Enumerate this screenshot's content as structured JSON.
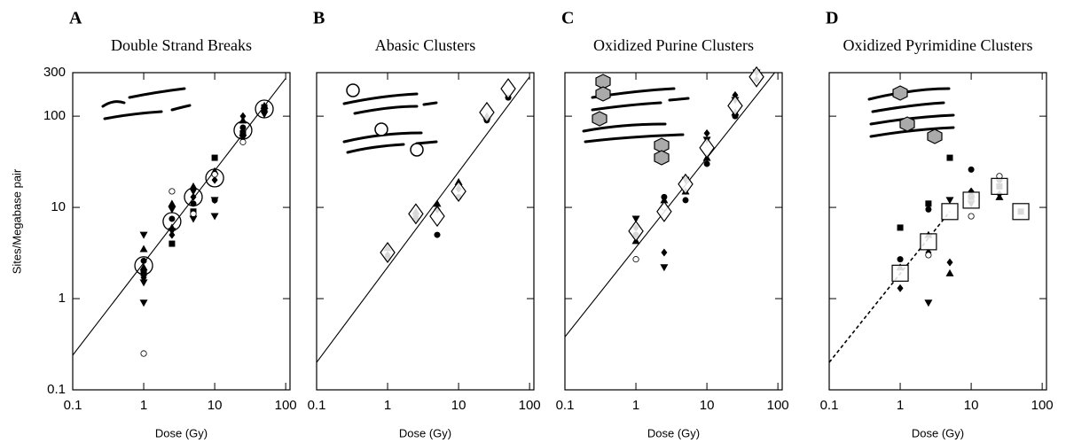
{
  "chart_data": [
    {
      "type": "scatter",
      "panel": "A",
      "title": "Double Strand Breaks",
      "xlabel": "Dose (Gy)",
      "ylabel": "Sites/Megabase pair",
      "log_x": true,
      "log_y": true,
      "xlim": [
        0.1,
        115
      ],
      "ylim": [
        0.1,
        300
      ],
      "xticks": [
        0.1,
        1,
        10,
        100
      ],
      "yticks": [
        0.1,
        1,
        10,
        100,
        300
      ],
      "ytick_labels": true,
      "fit": {
        "x": [
          0.1,
          100
        ],
        "values": [
          0.24,
          260
        ],
        "dashed": false
      },
      "series": [
        {
          "marker": "filled-triangle-down",
          "color": "#000",
          "x": [
            1,
            1,
            1,
            2.5,
            2.5,
            5,
            5,
            10,
            10,
            25,
            50
          ],
          "values": [
            5,
            1.5,
            0.9,
            9.5,
            5.5,
            15,
            7.5,
            12,
            8,
            58,
            105
          ]
        },
        {
          "marker": "filled-triangle",
          "color": "#000",
          "x": [
            1,
            1,
            2.5,
            2.5,
            5,
            10,
            25,
            50
          ],
          "values": [
            3.5,
            2.2,
            11,
            6,
            17,
            25,
            90,
            130
          ]
        },
        {
          "marker": "filled-square",
          "color": "#000",
          "x": [
            1,
            2.5,
            5,
            10,
            25,
            50
          ],
          "values": [
            1.9,
            4,
            9,
            35,
            65,
            125
          ]
        },
        {
          "marker": "filled-circle",
          "color": "#000",
          "x": [
            1,
            2.5,
            5,
            10,
            25
          ],
          "values": [
            2.6,
            7.5,
            11,
            12,
            75
          ]
        },
        {
          "marker": "filled-diamond",
          "color": "#000",
          "x": [
            1,
            2.5,
            5,
            10,
            25,
            50
          ],
          "values": [
            1.7,
            5,
            13,
            20,
            100,
            115
          ]
        },
        {
          "marker": "open-circle-sm",
          "color": "#000",
          "x": [
            1,
            2.5,
            5,
            10,
            25
          ],
          "values": [
            0.25,
            15,
            8.5,
            23,
            52
          ]
        },
        {
          "marker": "open-circle-lg",
          "color": "#000",
          "x": [
            1,
            2.5,
            5,
            10,
            25,
            50
          ],
          "values": [
            2.3,
            7,
            13,
            21,
            70,
            120
          ]
        }
      ]
    },
    {
      "type": "scatter",
      "panel": "B",
      "title": "Abasic Clusters",
      "xlabel": "Dose (Gy)",
      "log_x": true,
      "log_y": true,
      "xlim": [
        0.1,
        115
      ],
      "ylim": [
        0.1,
        300
      ],
      "xticks": [
        0.1,
        1,
        10,
        100
      ],
      "yticks": [
        0.1,
        1,
        10,
        100
      ],
      "ytick_labels": false,
      "fit": {
        "x": [
          0.1,
          100
        ],
        "values": [
          0.2,
          270
        ],
        "dashed": false
      },
      "series": [
        {
          "marker": "filled-triangle",
          "color": "#000",
          "x": [
            1,
            2.5,
            5,
            10,
            25
          ],
          "values": [
            3.6,
            9,
            11,
            19,
            100
          ]
        },
        {
          "marker": "filled-circle",
          "color": "#000",
          "x": [
            1,
            2.5,
            5,
            10,
            25,
            50
          ],
          "values": [
            2.8,
            7.5,
            5,
            13,
            90,
            160
          ]
        },
        {
          "marker": "filled-diamond",
          "color": "#000",
          "x": [
            1,
            2.5,
            5,
            10
          ],
          "values": [
            3,
            8,
            9.5,
            16
          ]
        },
        {
          "marker": "open-diamond-lg",
          "color": "#000",
          "x": [
            1,
            2.5,
            5,
            10,
            25,
            50
          ],
          "values": [
            3.2,
            8.5,
            8,
            15,
            110,
            200
          ]
        }
      ]
    },
    {
      "type": "scatter",
      "panel": "C",
      "title": "Oxidized Purine Clusters",
      "xlabel": "Dose (Gy)",
      "log_x": true,
      "log_y": true,
      "xlim": [
        0.1,
        115
      ],
      "ylim": [
        0.1,
        300
      ],
      "xticks": [
        0.1,
        1,
        10,
        100
      ],
      "yticks": [
        0.1,
        1,
        10,
        100
      ],
      "ytick_labels": false,
      "fit": {
        "x": [
          0.1,
          90
        ],
        "values": [
          0.38,
          300
        ],
        "dashed": false
      },
      "series": [
        {
          "marker": "filled-triangle-down",
          "color": "#000",
          "x": [
            1,
            2.5,
            5,
            10,
            25,
            50
          ],
          "values": [
            7.5,
            2.2,
            20,
            55,
            150,
            300
          ]
        },
        {
          "marker": "filled-triangle",
          "color": "#000",
          "x": [
            1,
            2.5,
            5,
            10,
            25
          ],
          "values": [
            4.3,
            12,
            15,
            35,
            110
          ]
        },
        {
          "marker": "filled-diamond",
          "color": "#000",
          "x": [
            1,
            2.5,
            5,
            10,
            25,
            50
          ],
          "values": [
            6,
            3.2,
            21,
            65,
            170,
            250
          ]
        },
        {
          "marker": "filled-circle",
          "color": "#000",
          "x": [
            1,
            2.5,
            5,
            10,
            25
          ],
          "values": [
            5,
            13,
            12,
            30,
            100
          ]
        },
        {
          "marker": "open-circle-sm",
          "color": "#000",
          "x": [
            1,
            2.5
          ],
          "values": [
            2.7,
            10
          ]
        },
        {
          "marker": "open-diamond-lg",
          "color": "#000",
          "x": [
            1,
            2.5,
            5,
            10,
            25,
            50
          ],
          "values": [
            5.5,
            9,
            18,
            45,
            130,
            270
          ]
        }
      ]
    },
    {
      "type": "scatter",
      "panel": "D",
      "title": "Oxidized Pyrimidine Clusters",
      "xlabel": "Dose (Gy)",
      "log_x": true,
      "log_y": true,
      "xlim": [
        0.1,
        115
      ],
      "ylim": [
        0.1,
        300
      ],
      "xticks": [
        0.1,
        1,
        10,
        100
      ],
      "yticks": [
        0.1,
        1,
        10,
        100
      ],
      "ytick_labels": false,
      "fit": {
        "x": [
          0.1,
          5
        ],
        "values": [
          0.2,
          9
        ],
        "dashed": true
      },
      "series": [
        {
          "marker": "filled-square",
          "color": "#000",
          "x": [
            1,
            2.5,
            5,
            10,
            25,
            50
          ],
          "values": [
            6,
            11,
            35,
            13,
            17,
            9
          ]
        },
        {
          "marker": "filled-circle",
          "color": "#000",
          "x": [
            1,
            2.5,
            10,
            25
          ],
          "values": [
            2.7,
            9.5,
            26,
            20
          ]
        },
        {
          "marker": "filled-triangle-down",
          "color": "#000",
          "x": [
            2.5,
            5,
            10
          ],
          "values": [
            0.9,
            12,
            11
          ]
        },
        {
          "marker": "filled-triangle",
          "color": "#000",
          "x": [
            1,
            2.5,
            5,
            10,
            25
          ],
          "values": [
            2.2,
            5,
            1.9,
            14,
            13
          ]
        },
        {
          "marker": "filled-diamond",
          "color": "#000",
          "x": [
            1,
            2.5,
            5,
            10,
            25
          ],
          "values": [
            1.3,
            3.2,
            2.5,
            15,
            14
          ]
        },
        {
          "marker": "open-circle-sm",
          "color": "#000",
          "x": [
            2.5,
            10,
            25
          ],
          "values": [
            3,
            8,
            22
          ]
        },
        {
          "marker": "open-square-lg",
          "color": "#000",
          "x": [
            1,
            2.5,
            5,
            10,
            25,
            50
          ],
          "values": [
            1.9,
            4.2,
            9,
            12,
            17,
            9
          ]
        }
      ]
    }
  ]
}
